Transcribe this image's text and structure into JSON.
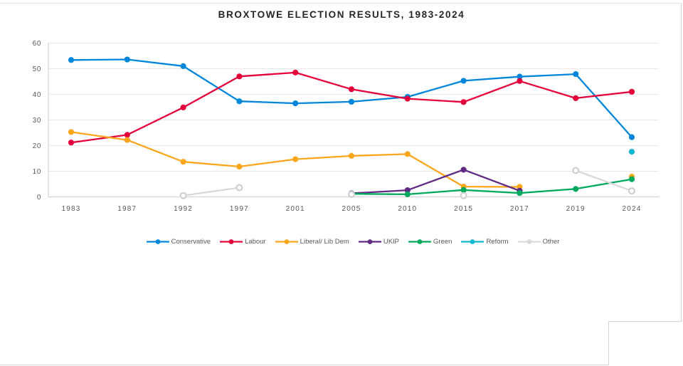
{
  "chart_data": {
    "type": "line",
    "title": "BROXTOWE ELECTION RESULTS, 1983-2024",
    "xlabel": "",
    "ylabel": "",
    "categories": [
      "1983",
      "1987",
      "1992",
      "1997",
      "2001",
      "2005",
      "2010",
      "2015",
      "2017",
      "2019",
      "2024"
    ],
    "ylim": [
      0,
      60
    ],
    "yticks": [
      0,
      10,
      20,
      30,
      40,
      50,
      60
    ],
    "grid": true,
    "legend_position": "bottom",
    "series": [
      {
        "name": "Conservative",
        "color": "#0087DC",
        "values": [
          53.4,
          53.6,
          51.0,
          37.3,
          36.5,
          37.1,
          39.0,
          45.3,
          46.9,
          47.9,
          23.3
        ]
      },
      {
        "name": "Labour",
        "color": "#E4003B",
        "values": [
          21.2,
          24.2,
          34.9,
          47.0,
          48.5,
          42.0,
          38.3,
          37.0,
          45.2,
          38.5,
          41.0
        ]
      },
      {
        "name": "Liberal/ Lib Dem",
        "color": "#FAA61A",
        "values": [
          25.3,
          22.2,
          13.7,
          11.8,
          14.7,
          16.0,
          16.7,
          4.0,
          3.9,
          null,
          7.9
        ]
      },
      {
        "name": "UKIP",
        "color": "#5F2A84",
        "values": [
          null,
          null,
          null,
          null,
          null,
          1.4,
          2.6,
          10.6,
          2.4,
          null,
          null
        ]
      },
      {
        "name": "Green",
        "color": "#00A95C",
        "values": [
          null,
          null,
          null,
          null,
          null,
          1.2,
          1.0,
          2.7,
          1.5,
          3.1,
          6.9
        ]
      },
      {
        "name": "Reform",
        "color": "#12B6CF",
        "values": [
          null,
          null,
          null,
          null,
          null,
          null,
          null,
          null,
          null,
          null,
          17.6
        ]
      },
      {
        "name": "Other",
        "color": "#D9D9D9",
        "values": [
          null,
          null,
          0.5,
          3.6,
          null,
          1.0,
          null,
          0.5,
          null,
          10.3,
          2.3
        ],
        "hollow_marker": true
      }
    ]
  },
  "colors": {
    "gridline": "#E8E8E8",
    "axis_line": "#CFCFCF",
    "tick_label": "#595959",
    "title": "#262626",
    "panel_border": "#D4D4D4"
  }
}
